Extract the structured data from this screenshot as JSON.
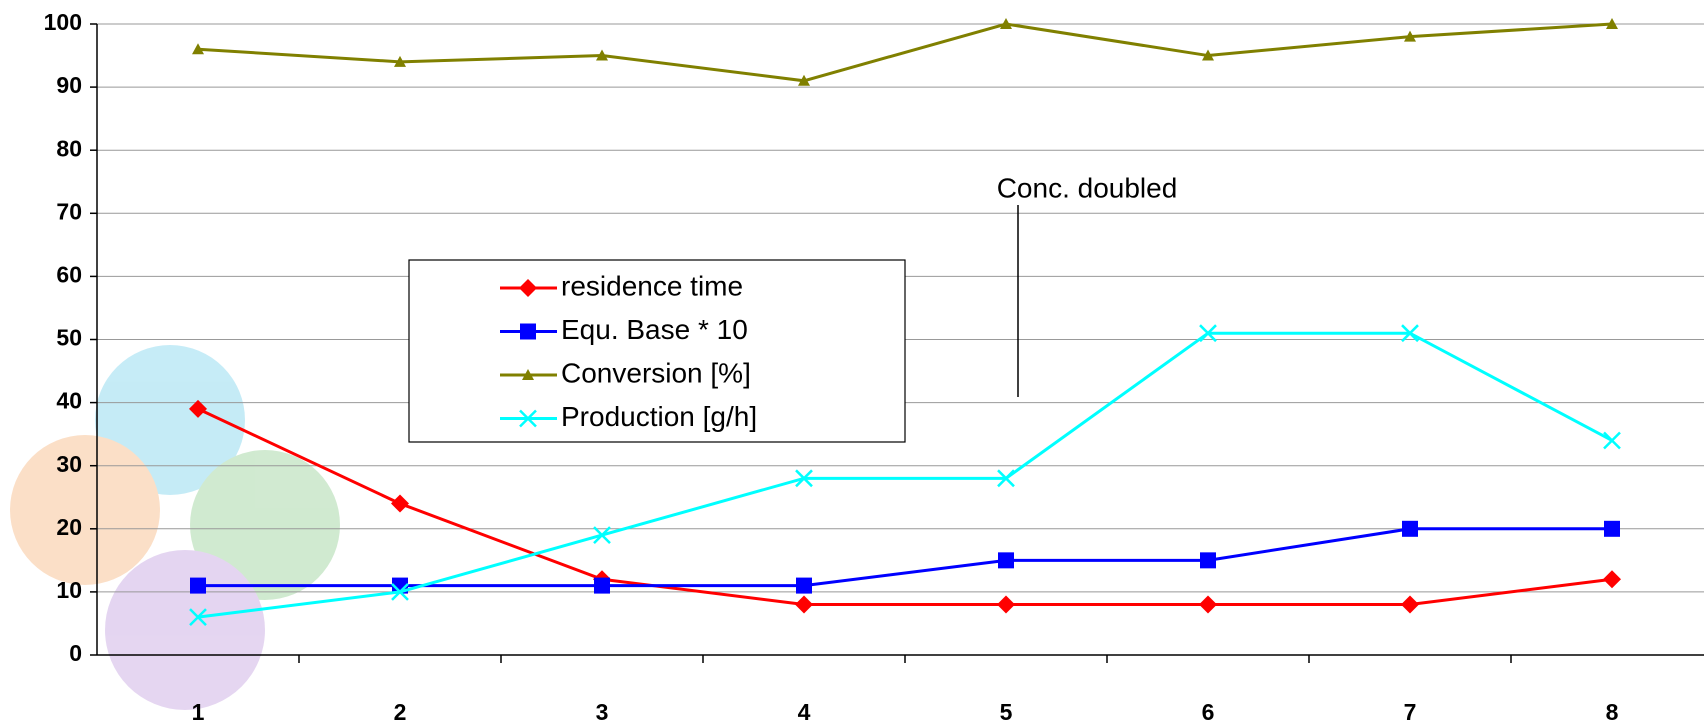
{
  "chart_data": {
    "type": "line",
    "categories": [
      "1",
      "2",
      "3",
      "4",
      "5",
      "6",
      "7",
      "8"
    ],
    "series": [
      {
        "name": "residence time",
        "color": "#ff0000",
        "marker": "diamond",
        "values": [
          39,
          24,
          12,
          8,
          8,
          8,
          8,
          12
        ]
      },
      {
        "name": "Equ. Base * 10",
        "color": "#0000ff",
        "marker": "square",
        "values": [
          11,
          11,
          11,
          11,
          15,
          15,
          20,
          20
        ]
      },
      {
        "name": "Conversion [%]",
        "color": "#808000",
        "marker": "triangle",
        "values": [
          96,
          94,
          95,
          91,
          100,
          95,
          98,
          100
        ]
      },
      {
        "name": "Production [g/h]",
        "color": "#00ffff",
        "marker": "x",
        "values": [
          6,
          10,
          19,
          28,
          28,
          51,
          51,
          34
        ]
      }
    ],
    "annotation": "Conc. doubled",
    "ylim": [
      0,
      100
    ],
    "yticks": [
      0,
      10,
      20,
      30,
      40,
      50,
      60,
      70,
      80,
      90,
      100
    ],
    "grid": true
  }
}
